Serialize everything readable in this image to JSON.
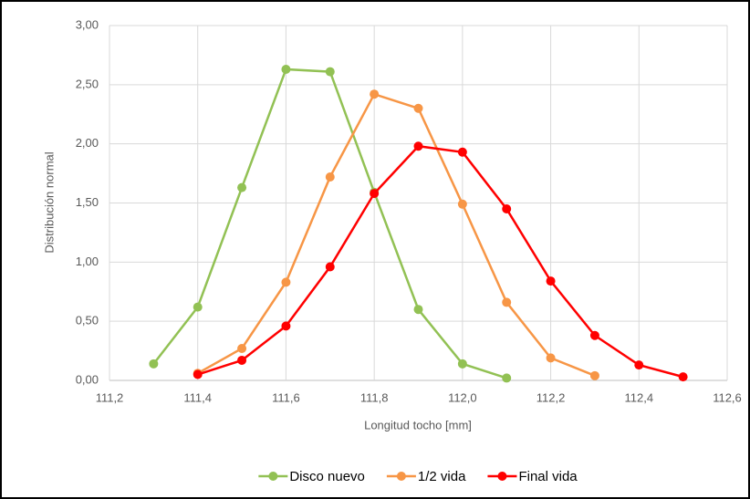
{
  "chart_data": {
    "type": "line",
    "x_label": "Longitud tocho [mm]",
    "y_label": "Distribución normal",
    "xlim": [
      111.2,
      112.6
    ],
    "xticks": [
      {
        "value": 111.2,
        "label": "111,2"
      },
      {
        "value": 111.4,
        "label": "111,4"
      },
      {
        "value": 111.6,
        "label": "111,6"
      },
      {
        "value": 111.8,
        "label": "111,8"
      },
      {
        "value": 112.0,
        "label": "112,0"
      },
      {
        "value": 112.2,
        "label": "112,2"
      },
      {
        "value": 112.4,
        "label": "112,4"
      },
      {
        "value": 112.6,
        "label": "112,6"
      }
    ],
    "ylim": [
      0,
      3
    ],
    "yticks": [
      {
        "value": 0,
        "label": "0,00"
      },
      {
        "value": 0.5,
        "label": "0,50"
      },
      {
        "value": 1,
        "label": "1,00"
      },
      {
        "value": 1.5,
        "label": "1,50"
      },
      {
        "value": 2,
        "label": "2,00"
      },
      {
        "value": 2.5,
        "label": "2,50"
      },
      {
        "value": 3,
        "label": "3,00"
      }
    ],
    "grid": true,
    "legend": "bottom",
    "series": [
      {
        "name": "Disco nuevo",
        "color": "#92c154",
        "x": [
          111.3,
          111.4,
          111.5,
          111.6,
          111.7,
          111.8,
          111.9,
          112.0,
          112.1
        ],
        "values": [
          0.14,
          0.62,
          1.63,
          2.63,
          2.61,
          1.59,
          0.6,
          0.14,
          0.02
        ]
      },
      {
        "name": "1/2 vida",
        "color": "#f79646",
        "x": [
          111.4,
          111.5,
          111.6,
          111.7,
          111.8,
          111.9,
          112.0,
          112.1,
          112.2,
          112.3
        ],
        "values": [
          0.06,
          0.27,
          0.83,
          1.72,
          2.42,
          2.3,
          1.49,
          0.66,
          0.19,
          0.04
        ]
      },
      {
        "name": "Final vida",
        "color": "#ff0000",
        "x": [
          111.4,
          111.5,
          111.6,
          111.7,
          111.8,
          111.9,
          112.0,
          112.1,
          112.2,
          112.3,
          112.4,
          112.5
        ],
        "values": [
          0.05,
          0.17,
          0.46,
          0.96,
          1.58,
          1.98,
          1.93,
          1.45,
          0.84,
          0.38,
          0.13,
          0.03
        ]
      }
    ]
  }
}
